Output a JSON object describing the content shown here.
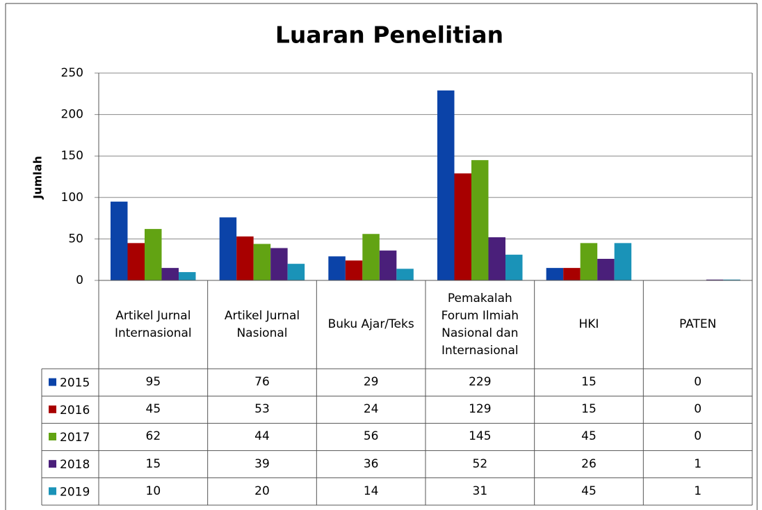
{
  "chart_data": {
    "type": "bar",
    "title": "Luaran Penelitian",
    "y_label": "Jumlah",
    "categories": [
      "Artikel Jurnal Internasional",
      "Artikel Jurnal Nasional",
      "Buku Ajar/Teks",
      "Pemakalah Forum Ilmiah Nasional dan Internasional",
      "HKI",
      "PATEN"
    ],
    "series": [
      {
        "name": "2015",
        "color": "#0b43a8",
        "values": [
          95,
          76,
          29,
          229,
          15,
          0
        ]
      },
      {
        "name": "2016",
        "color": "#a80000",
        "values": [
          45,
          53,
          24,
          129,
          15,
          0
        ]
      },
      {
        "name": "2017",
        "color": "#62a313",
        "values": [
          62,
          44,
          56,
          145,
          45,
          0
        ]
      },
      {
        "name": "2018",
        "color": "#4a1f7a",
        "values": [
          15,
          39,
          36,
          52,
          26,
          1
        ]
      },
      {
        "name": "2019",
        "color": "#1a93b8",
        "values": [
          10,
          20,
          14,
          31,
          45,
          1
        ]
      }
    ],
    "ylim": [
      0,
      250
    ],
    "yticks": [
      0,
      50,
      100,
      150,
      200,
      250
    ],
    "grid": true,
    "data_table": true
  }
}
